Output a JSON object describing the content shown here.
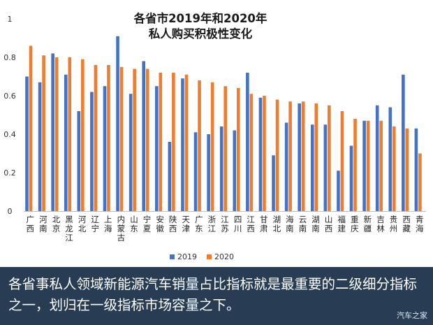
{
  "chart_data": {
    "type": "bar",
    "title": [
      "各省市2019年和2020年",
      "私人购买积极性变化"
    ],
    "xlabel": "",
    "ylabel": "",
    "ylim": [
      0,
      1
    ],
    "yticks": [
      0,
      0.2,
      0.4,
      0.6,
      0.8,
      1
    ],
    "ytick_labels": [
      "0",
      "0.2",
      "0.4",
      "0.6",
      "0.8",
      "1"
    ],
    "grid": false,
    "legend_position": "bottom",
    "categories": [
      "广西",
      "河南",
      "北京",
      "黑龙江",
      "河北",
      "辽宁",
      "上海",
      "内蒙古",
      "山东",
      "宁夏",
      "安徽",
      "陕西",
      "天津",
      "广东",
      "浙江",
      "江苏",
      "四川",
      "江西",
      "甘肃",
      "湖北",
      "海南",
      "云南",
      "湖南",
      "山西",
      "福建",
      "重庆",
      "新疆",
      "吉林",
      "贵州",
      "西藏",
      "青海"
    ],
    "series": [
      {
        "name": "2019",
        "color": "#4472c4",
        "values": [
          0.7,
          0.67,
          0.82,
          0.71,
          0.52,
          0.62,
          0.65,
          0.91,
          0.61,
          0.78,
          0.65,
          0.36,
          0.69,
          0.41,
          0.4,
          0.44,
          0.42,
          0.72,
          0.59,
          0.29,
          0.46,
          0.56,
          0.45,
          0.45,
          0.21,
          0.34,
          0.47,
          0.55,
          0.54,
          0.71,
          0.43
        ]
      },
      {
        "name": "2020",
        "color": "#ed7d31",
        "values": [
          0.86,
          0.81,
          0.8,
          0.8,
          0.79,
          0.76,
          0.76,
          0.75,
          0.74,
          0.74,
          0.72,
          0.72,
          0.71,
          0.68,
          0.67,
          0.65,
          0.64,
          0.61,
          0.6,
          0.58,
          0.57,
          0.57,
          0.56,
          0.55,
          0.52,
          0.48,
          0.47,
          0.47,
          0.44,
          0.43,
          0.3
        ]
      }
    ]
  },
  "caption": {
    "text": "各省事私人领域新能源汽车销量占比指标就是最重要的二级细分指标之一，划归在一级指标市场容量之下。"
  },
  "watermark": "汽车之家"
}
